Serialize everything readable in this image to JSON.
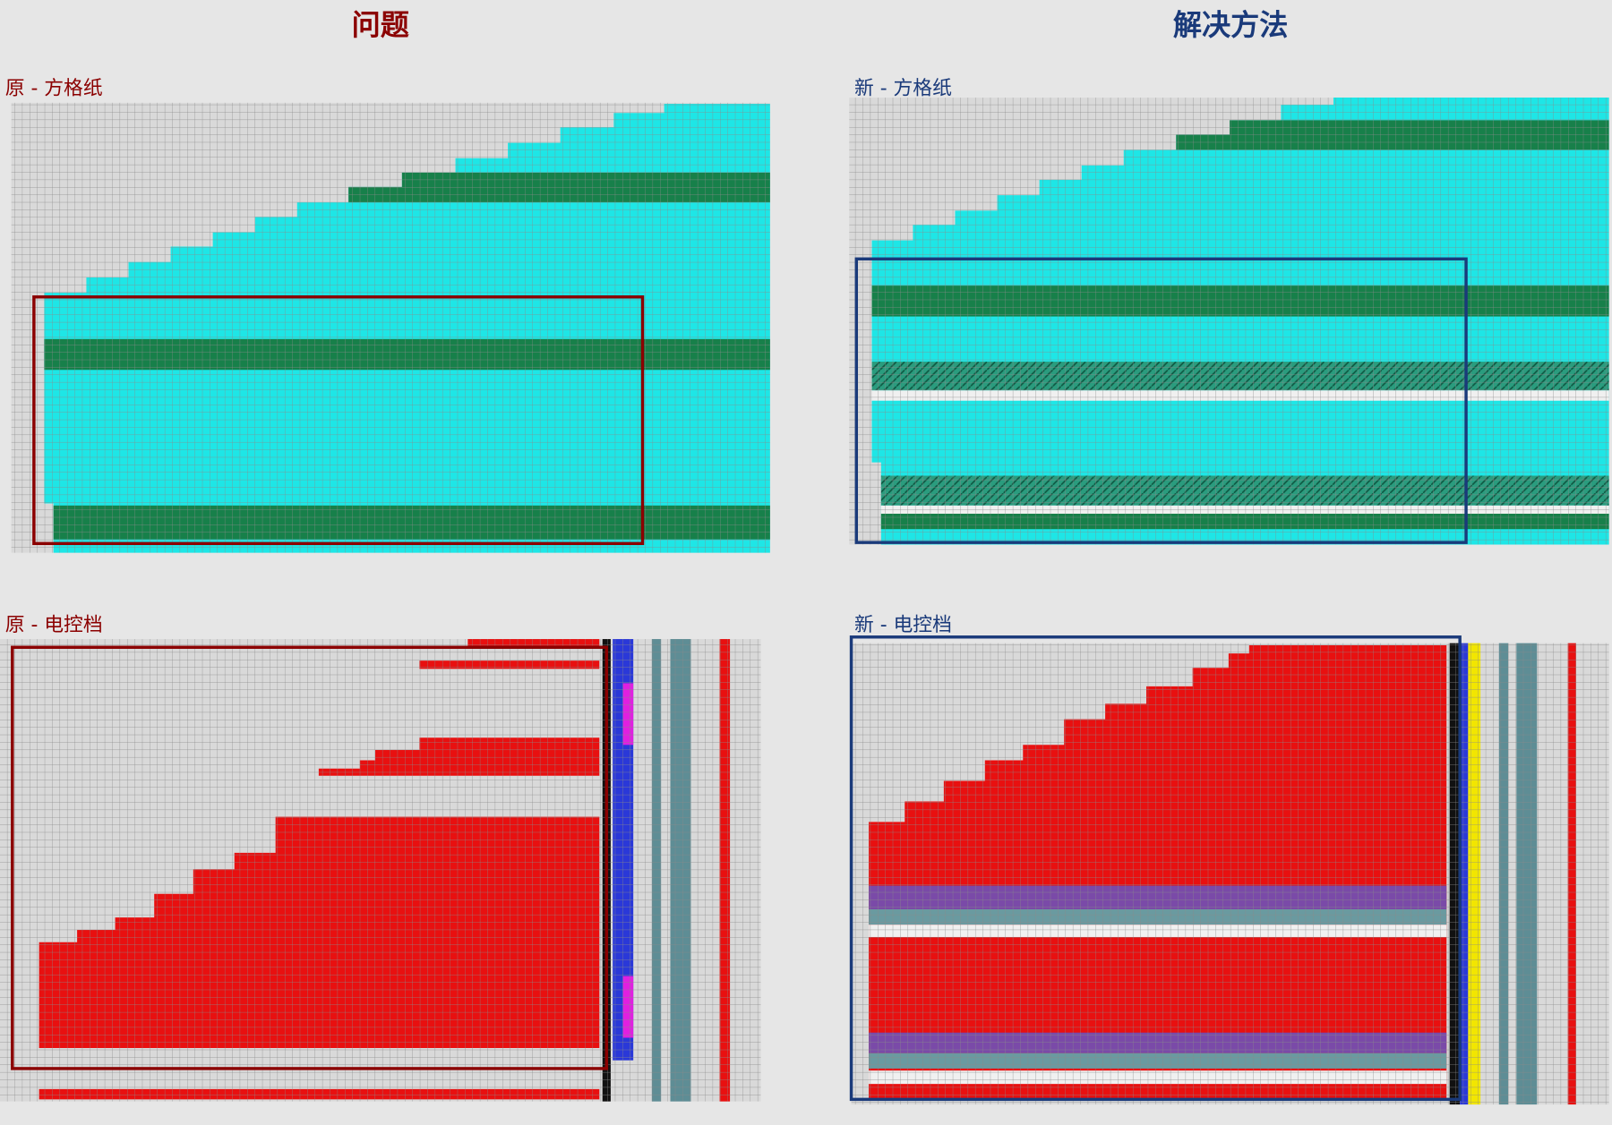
{
  "header": {
    "problem": "问题",
    "solution": "解决方法"
  },
  "panels": {
    "old_grid": "原 - 方格纸",
    "new_grid": "新 - 方格纸",
    "old_control": "原 - 电控档",
    "new_control": "新 - 电控档"
  }
}
